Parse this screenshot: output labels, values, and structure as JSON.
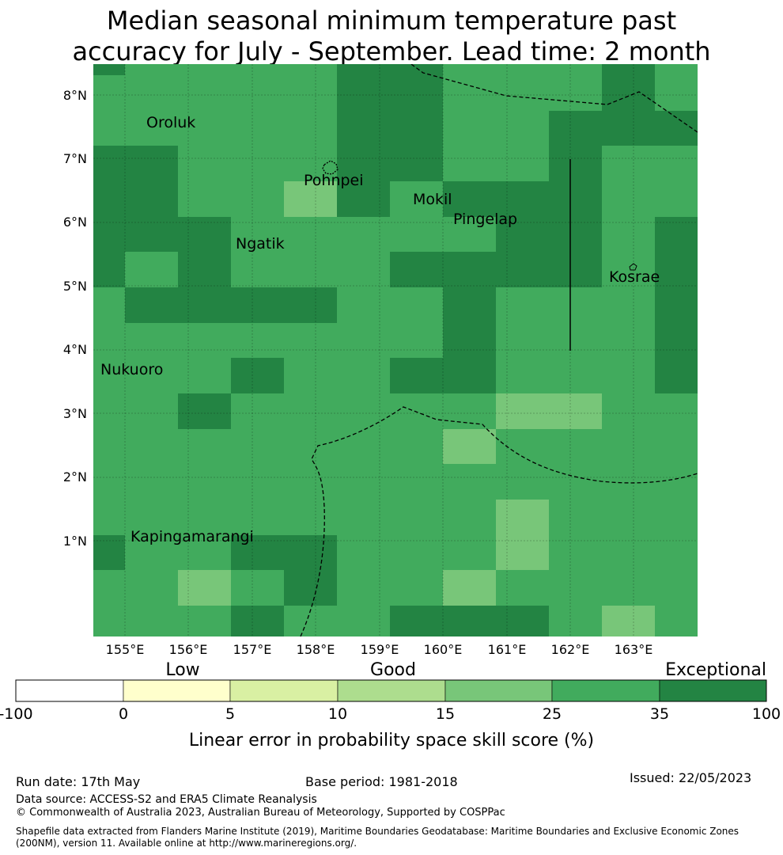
{
  "title": {
    "line1": "Median seasonal minimum temperature past",
    "line2": "accuracy for July - September. Lead time: 2 month"
  },
  "map": {
    "lon_labels": [
      "155°E",
      "156°E",
      "157°E",
      "158°E",
      "159°E",
      "160°E",
      "161°E",
      "162°E",
      "163°E"
    ],
    "lat_labels": [
      "1°N",
      "2°N",
      "3°N",
      "4°N",
      "5°N",
      "6°N",
      "7°N",
      "8°N"
    ],
    "places": [
      "Oroluk",
      "Pohnpei",
      "Mokil",
      "Pingelap",
      "Ngatik",
      "Kosrae",
      "Nukuoro",
      "Kapingamarangi"
    ],
    "category_colors": {
      "good_light": "#78c679",
      "good": "#41ab5d",
      "exceptional": "#238443"
    }
  },
  "legend": {
    "categories": [
      "Low",
      "Good",
      "Exceptional"
    ],
    "ticks": [
      "-100",
      "0",
      "5",
      "10",
      "15",
      "25",
      "35",
      "100"
    ],
    "colors": [
      "#ffffff",
      "#ffffcc",
      "#d9f0a3",
      "#addd8e",
      "#78c679",
      "#41ab5d",
      "#238443"
    ],
    "label": "Linear error in probability space skill score (%)"
  },
  "footer": {
    "run_date": "Run date: 17th May",
    "base_period": "Base period: 1981-2018",
    "issued": "Issued: 22/05/2023",
    "data_source": "Data source: ACCESS-S2 and ERA5 Climate Reanalysis",
    "copyright": "© Commonwealth of Australia 2023, Australian Bureau of Meteorology, Supported by COSPPac",
    "shapefile_line1": "Shapefile data extracted from Flanders Marine Institute (2019), Maritime Boundaries Geodatabase: Maritime Boundaries and Exclusive Economic Zones",
    "shapefile_line2": "(200NM), version 11. Available online at http://www.marineregions.org/."
  }
}
